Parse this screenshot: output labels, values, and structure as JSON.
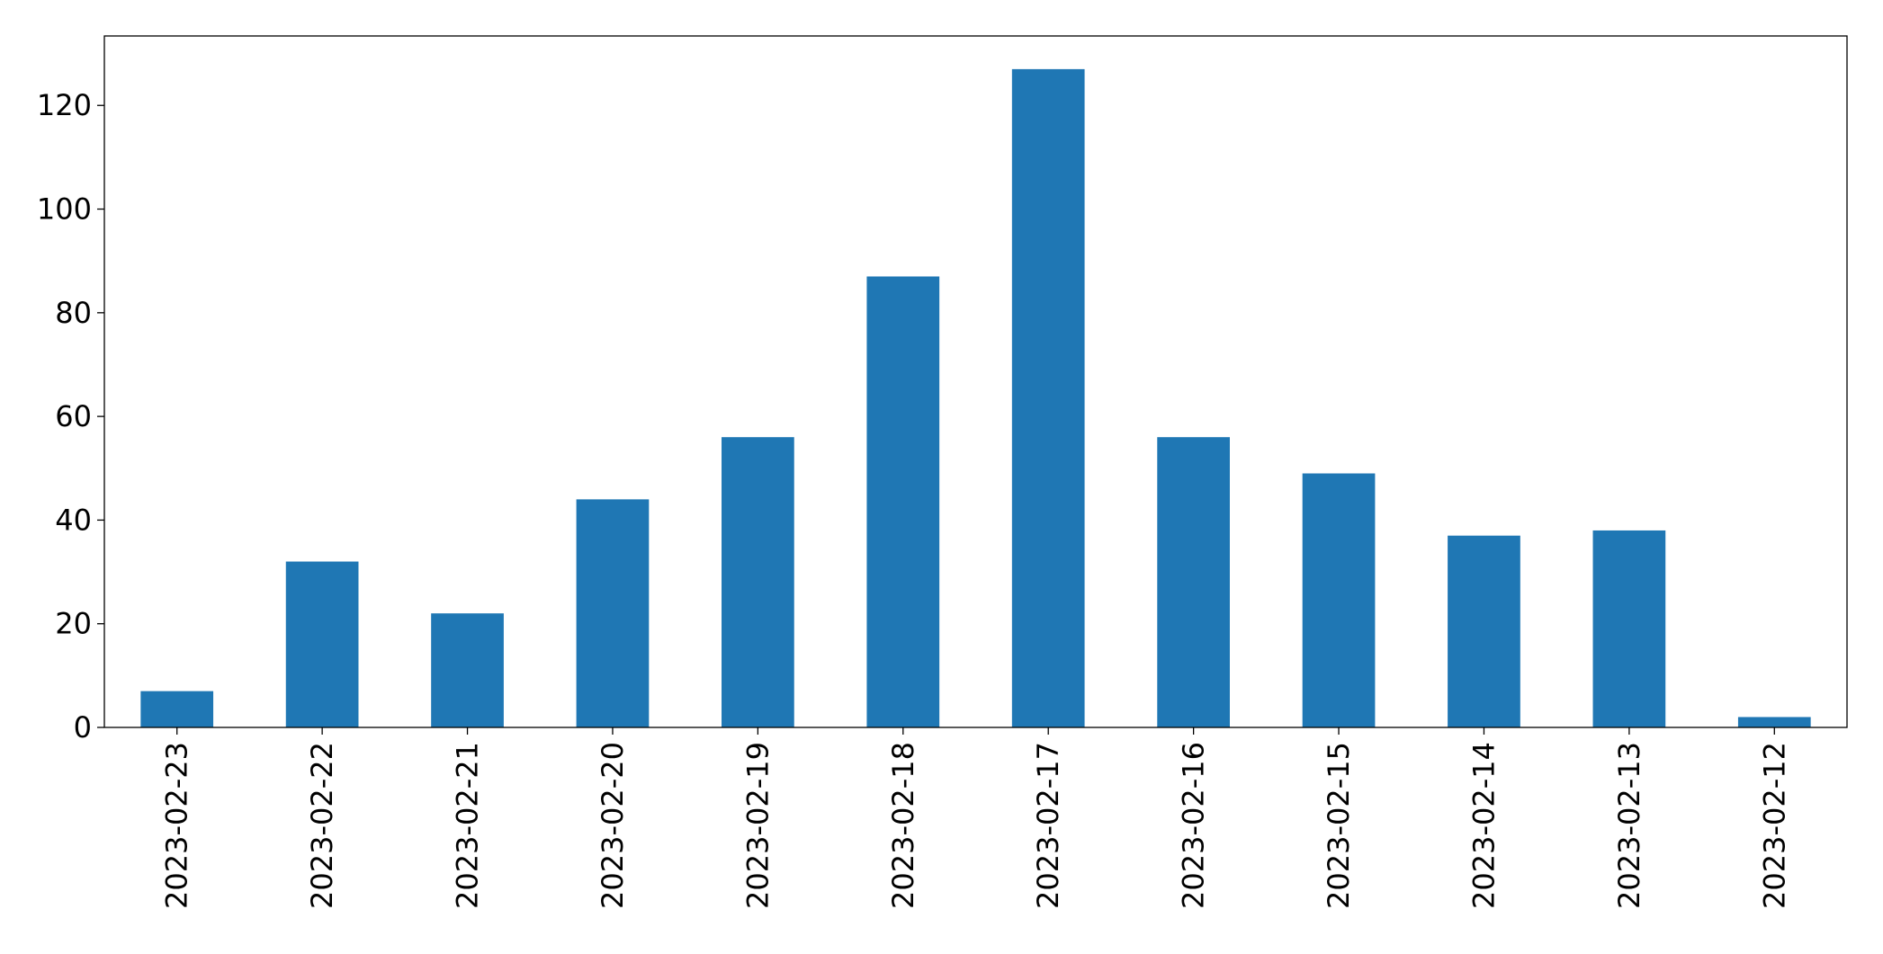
{
  "chart_data": {
    "type": "bar",
    "categories": [
      "2023-02-23",
      "2023-02-22",
      "2023-02-21",
      "2023-02-20",
      "2023-02-19",
      "2023-02-18",
      "2023-02-17",
      "2023-02-16",
      "2023-02-15",
      "2023-02-14",
      "2023-02-13",
      "2023-02-12"
    ],
    "values": [
      7,
      32,
      22,
      44,
      56,
      87,
      127,
      56,
      49,
      37,
      38,
      2
    ],
    "color": "#1f77b4",
    "ylim": [
      0,
      133.4
    ],
    "yticks": [
      0,
      20,
      40,
      60,
      80,
      100,
      120
    ],
    "grid": false
  }
}
